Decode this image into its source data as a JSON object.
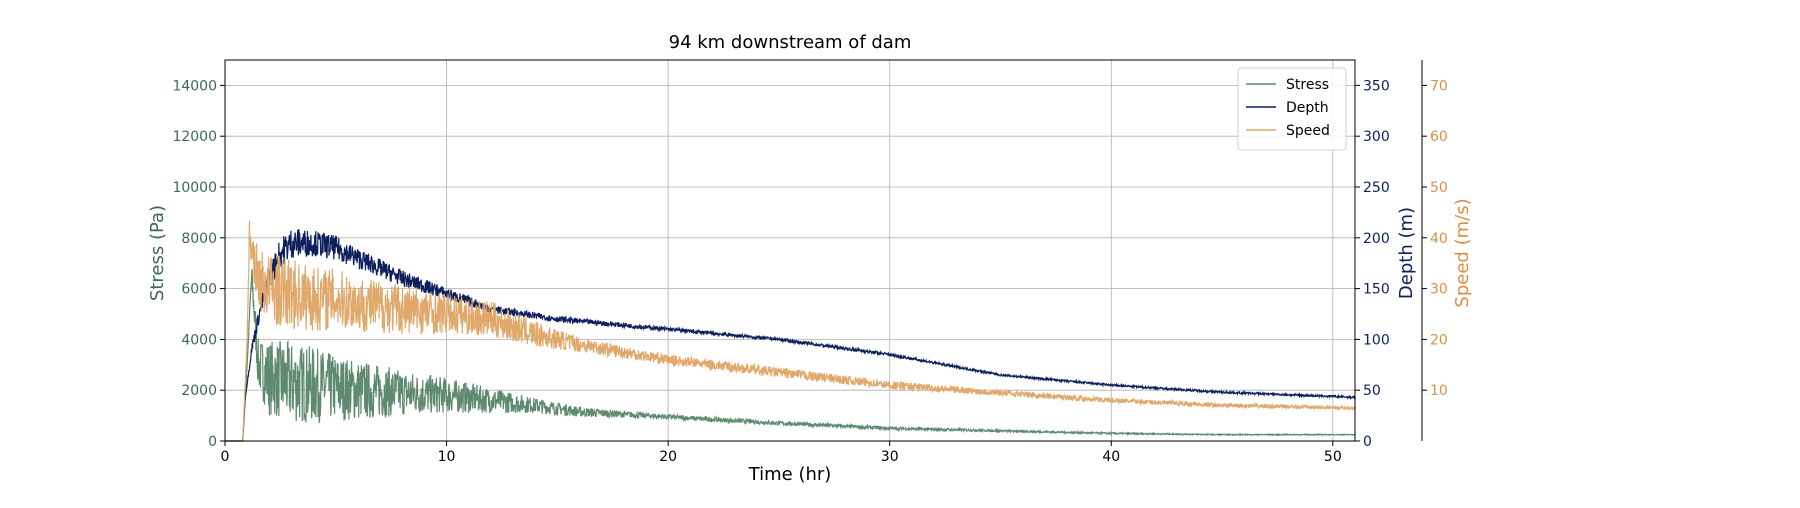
{
  "chart_data": {
    "type": "line",
    "title": "94 km downstream of dam",
    "xlabel": "Time (hr)",
    "xlim": [
      0,
      51
    ],
    "xticks": [
      0,
      10,
      20,
      30,
      40,
      50
    ],
    "grid": true,
    "legend_position": "top-right",
    "axes": {
      "stress": {
        "label": "Stress (Pa)",
        "side": "left",
        "color": "#3d6b4f",
        "ylim": [
          0,
          15000
        ],
        "ticks": [
          0,
          2000,
          4000,
          6000,
          8000,
          10000,
          12000,
          14000
        ]
      },
      "depth": {
        "label": "Depth (m)",
        "side": "right",
        "color": "#0d1f5c",
        "ylim": [
          0,
          375
        ],
        "ticks": [
          0,
          50,
          100,
          150,
          200,
          250,
          300,
          350
        ]
      },
      "speed": {
        "label": "Speed (m/s)",
        "side": "right-outer",
        "color": "#d98f45",
        "ylim": [
          0,
          75
        ],
        "ticks": [
          10,
          20,
          30,
          40,
          50,
          60,
          70
        ]
      }
    },
    "series": [
      {
        "name": "Stress",
        "axis": "stress",
        "color": "#5e8a6f",
        "x": [
          0,
          0.8,
          1.0,
          1.2,
          1.5,
          2,
          3,
          4,
          5,
          6,
          8,
          10,
          12,
          14,
          16,
          18,
          20,
          25,
          30,
          35,
          40,
          45,
          51
        ],
        "y": [
          0,
          0,
          3000,
          6500,
          3000,
          2500,
          2300,
          2200,
          2100,
          2000,
          1900,
          1800,
          1600,
          1400,
          1150,
          1050,
          950,
          700,
          500,
          400,
          300,
          250,
          250
        ],
        "noise": [
          0,
          0,
          0,
          600,
          1000,
          1500,
          1600,
          1500,
          1300,
          1200,
          900,
          700,
          500,
          300,
          200,
          130,
          100,
          80,
          60,
          40,
          30,
          20,
          15
        ]
      },
      {
        "name": "Depth",
        "axis": "depth",
        "color": "#0d1f5c",
        "x": [
          0,
          0.8,
          0.9,
          1.2,
          1.6,
          2,
          2.5,
          3,
          4,
          5,
          6,
          8,
          10,
          12,
          15,
          20,
          25,
          30,
          35,
          40,
          45,
          51
        ],
        "y": [
          0,
          0,
          40,
          90,
          130,
          160,
          185,
          195,
          195,
          190,
          180,
          160,
          145,
          130,
          120,
          110,
          100,
          85,
          65,
          55,
          48,
          43
        ],
        "noise": [
          0,
          0,
          0,
          5,
          8,
          12,
          15,
          15,
          13,
          12,
          10,
          8,
          6,
          4,
          3,
          2,
          1.5,
          1.5,
          1,
          1,
          1,
          1
        ]
      },
      {
        "name": "Speed",
        "axis": "speed",
        "color": "#e0a86a",
        "x": [
          0,
          0.8,
          1.0,
          1.1,
          1.5,
          2,
          3,
          4,
          5,
          6,
          8,
          10,
          12,
          14,
          16,
          20,
          25,
          30,
          35,
          40,
          45,
          51
        ],
        "y": [
          0,
          0,
          20,
          40,
          32,
          30,
          29,
          28,
          28,
          27,
          26,
          25,
          24,
          21,
          19,
          16,
          13.5,
          11,
          9.5,
          8,
          7,
          6.5
        ],
        "noise": [
          0,
          0,
          0,
          4,
          6,
          7,
          7,
          6.5,
          6,
          5.5,
          5,
          4,
          3.5,
          2.5,
          1.5,
          1,
          1,
          0.8,
          0.6,
          0.5,
          0.4,
          0.3
        ]
      }
    ]
  }
}
